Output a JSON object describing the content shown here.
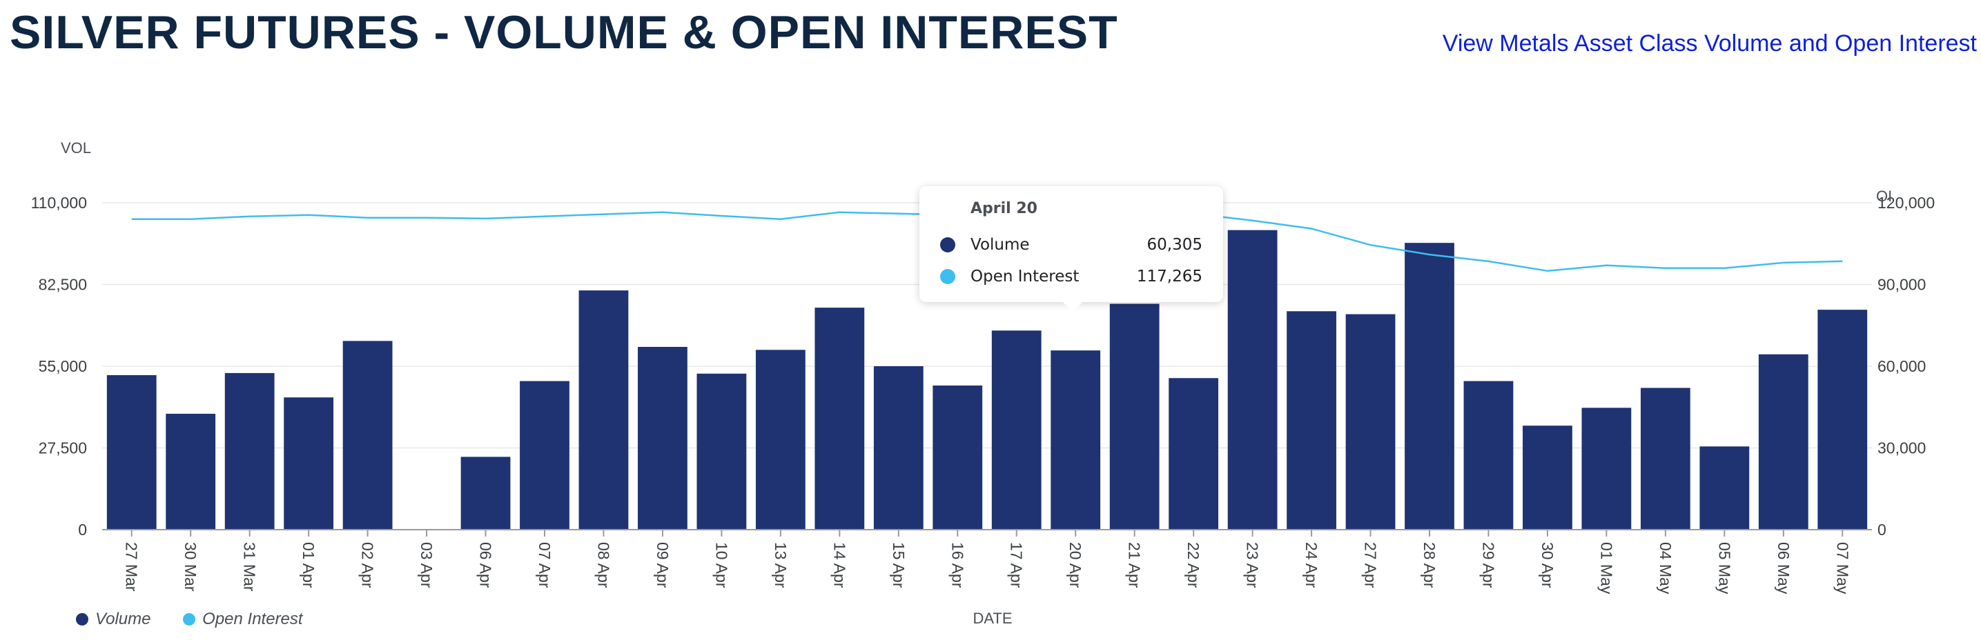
{
  "header": {
    "title": "SILVER FUTURES - VOLUME & OPEN INTEREST",
    "link_label": "View Metals Asset Class Volume and Open Interest"
  },
  "colors": {
    "title": "#0f2743",
    "link": "#0c1fd9",
    "volume": "#1f3272",
    "open_interest": "#3ebdef",
    "grid": "#e8e8e8"
  },
  "tooltip": {
    "title": "April 20",
    "rows": [
      {
        "label": "Volume",
        "value": "60,305",
        "series": "volume"
      },
      {
        "label": "Open Interest",
        "value": "117,265",
        "series": "open_interest"
      }
    ]
  },
  "legend": {
    "items": [
      {
        "label": "Volume",
        "color": "#1f3272"
      },
      {
        "label": "Open Interest",
        "color": "#3ebdef"
      }
    ]
  },
  "chart_data": {
    "type": "bar",
    "xlabel": "DATE",
    "ylabel_left": "VOL",
    "ylabel_right": "OI",
    "ylim_left": [
      0,
      110000
    ],
    "ylim_right": [
      0,
      120000
    ],
    "yticks_left": [
      "0",
      "27,500",
      "55,000",
      "82,500",
      "110,000"
    ],
    "yticks_left_values": [
      0,
      27500,
      55000,
      82500,
      110000
    ],
    "yticks_right": [
      "0",
      "30,000",
      "60,000",
      "90,000",
      "120,000"
    ],
    "yticks_right_values": [
      0,
      30000,
      60000,
      90000,
      120000
    ],
    "grid": true,
    "legend_position": "bottom-left",
    "categories": [
      "27 Mar",
      "30 Mar",
      "31 Mar",
      "01 Apr",
      "02 Apr",
      "03 Apr",
      "06 Apr",
      "07 Apr",
      "08 Apr",
      "09 Apr",
      "10 Apr",
      "13 Apr",
      "14 Apr",
      "15 Apr",
      "16 Apr",
      "17 Apr",
      "20 Apr",
      "21 Apr",
      "22 Apr",
      "23 Apr",
      "24 Apr",
      "27 Apr",
      "28 Apr",
      "29 Apr",
      "30 Apr",
      "01 May",
      "04 May",
      "05 May",
      "06 May",
      "07 May"
    ],
    "series": [
      {
        "name": "Volume",
        "axis": "left",
        "kind": "bar",
        "values": [
          52000,
          39000,
          52700,
          44500,
          63500,
          0,
          24500,
          50000,
          80500,
          61500,
          52500,
          60500,
          74700,
          55000,
          48500,
          67000,
          60305,
          76000,
          51000,
          100800,
          73500,
          72500,
          96500,
          50000,
          35000,
          41000,
          47700,
          28000,
          59000,
          74000
        ]
      },
      {
        "name": "Open Interest",
        "axis": "right",
        "kind": "line",
        "values": [
          114000,
          114000,
          115000,
          115500,
          114500,
          114500,
          114200,
          115000,
          115800,
          116500,
          115200,
          114000,
          116500,
          116000,
          115500,
          116000,
          117265,
          116500,
          116000,
          113500,
          110500,
          104500,
          101000,
          98500,
          95000,
          97000,
          96000,
          96000,
          98000,
          98500
        ]
      }
    ]
  }
}
